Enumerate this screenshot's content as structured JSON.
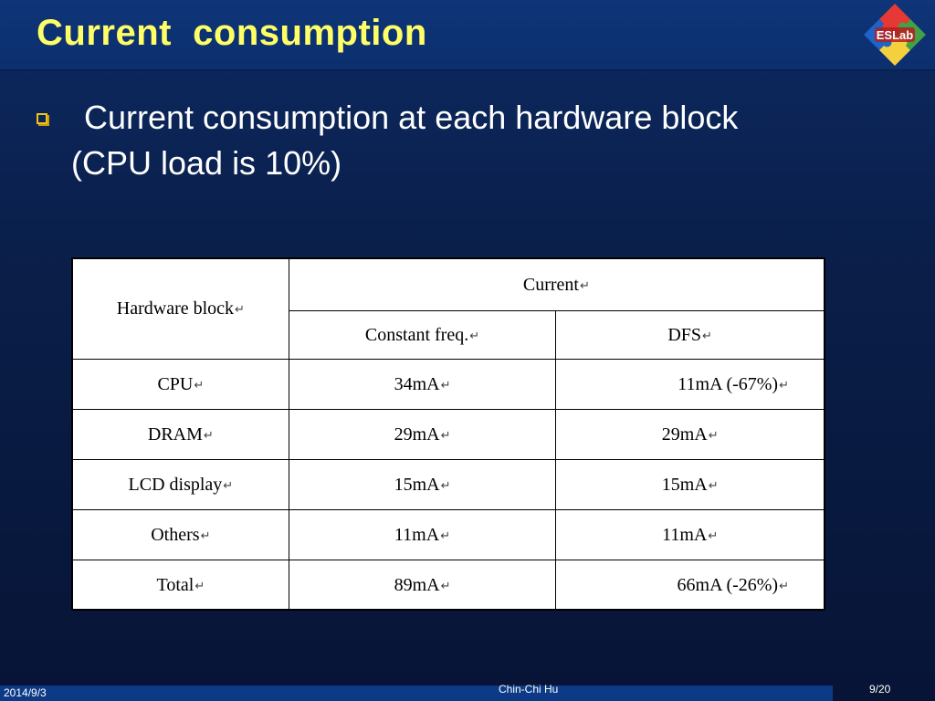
{
  "slide": {
    "title": "Current  consumption",
    "logo_text": "ESLab",
    "bullet": {
      "line1": "Current consumption at each hardware block",
      "line2": "(CPU load is 10%)"
    }
  },
  "table": {
    "header_hw": "Hardware block",
    "header_current": "Current",
    "header_const": "Constant freq.",
    "header_dfs": "DFS",
    "paragraph_mark": "↵",
    "rows": [
      {
        "block": "CPU",
        "const": "34mA",
        "dfs": "11mA (-67%)"
      },
      {
        "block": "DRAM",
        "const": "29mA",
        "dfs": "29mA"
      },
      {
        "block": "LCD display",
        "const": "15mA",
        "dfs": "15mA"
      },
      {
        "block": "Others",
        "const": "11mA",
        "dfs": "11mA"
      },
      {
        "block": "Total",
        "const": "89mA",
        "dfs": "66mA (-26%)"
      }
    ]
  },
  "footer": {
    "date": "2014/9/3",
    "author": "Chin-Chi Hu",
    "page": "9/20"
  },
  "colors": {
    "title": "#ffff66",
    "bullet_icon": "#f0c419",
    "background": "#0a1f4a",
    "footer_bar": "#0c3a86"
  },
  "icons": {
    "bullet": "hollow-square-bullet",
    "logo": "eslab-puzzle-logo"
  }
}
